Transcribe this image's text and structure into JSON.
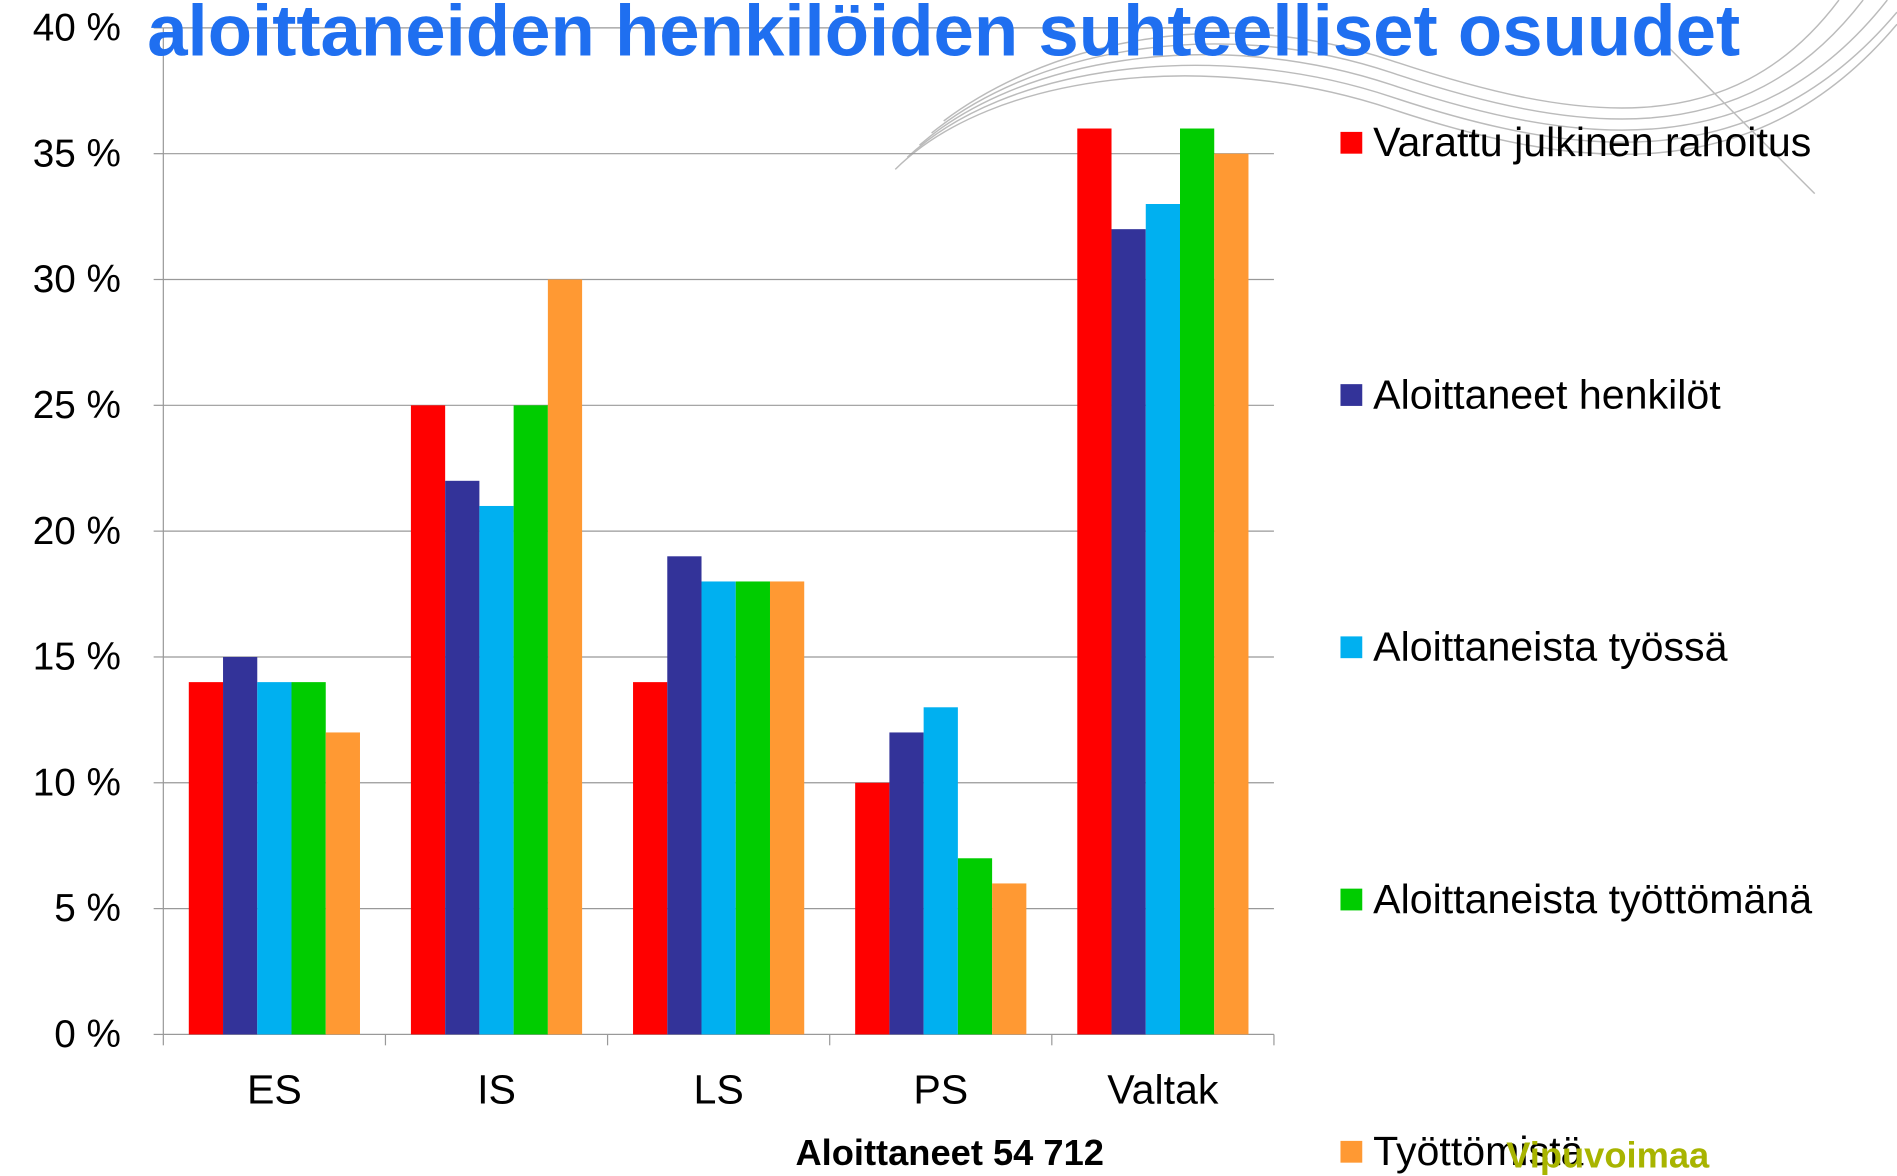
{
  "chart_data": {
    "type": "bar",
    "title": "aloittaneiden henkilöiden suhteelliset osuudet",
    "x_label": "Aloittaneet 54 712",
    "logo": "Vipuvoimaa",
    "categories": [
      "ES",
      "IS",
      "LS",
      "PS",
      "Valtak"
    ],
    "series": [
      {
        "name": "Varattu julkinen rahoitus",
        "color": "#ff0000",
        "values": [
          14,
          25,
          14,
          10,
          36
        ]
      },
      {
        "name": "Aloittaneet henkilöt",
        "color": "#333399",
        "values": [
          15,
          22,
          19,
          12,
          32
        ]
      },
      {
        "name": "Aloittaneista työssä",
        "color": "#00b0f0",
        "values": [
          14,
          21,
          18,
          13,
          33
        ]
      },
      {
        "name": "Aloittaneista työttömänä",
        "color": "#00cc00",
        "values": [
          14,
          25,
          18,
          7,
          36
        ]
      },
      {
        "name": "Työttömistä",
        "color": "#ff9933",
        "values": [
          12,
          30,
          18,
          6,
          35
        ]
      }
    ],
    "ylim": [
      0,
      40
    ],
    "yticks": [
      {
        "value": 0,
        "label": "0 %"
      },
      {
        "value": 5,
        "label": "5 %"
      },
      {
        "value": 10,
        "label": "10 %"
      },
      {
        "value": 15,
        "label": "15 %"
      },
      {
        "value": 20,
        "label": "20 %"
      },
      {
        "value": 25,
        "label": "25 %"
      },
      {
        "value": 30,
        "label": "30 %"
      },
      {
        "value": 35,
        "label": "35 %"
      },
      {
        "value": 40,
        "label": "40 %"
      }
    ],
    "grid": true,
    "legend": "right"
  }
}
